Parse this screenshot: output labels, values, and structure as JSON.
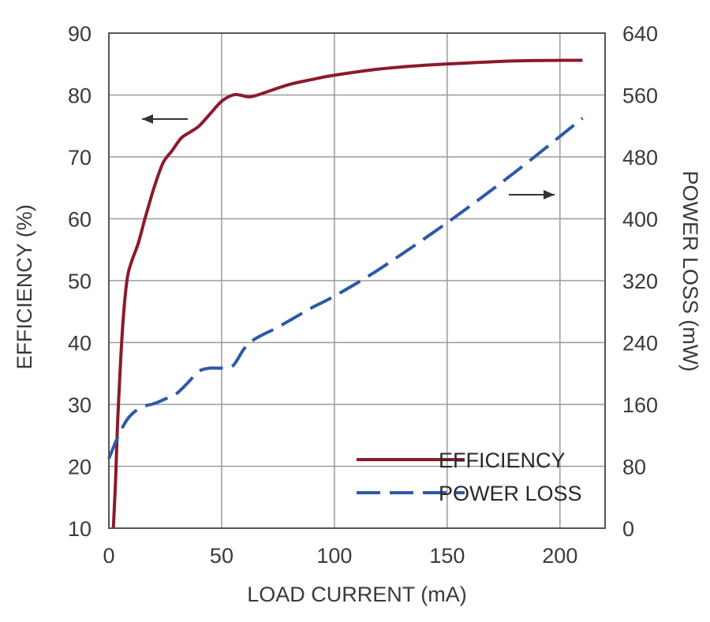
{
  "chart_data": {
    "type": "line",
    "xlabel": "LOAD CURRENT (mA)",
    "ylabel_left": "EFFICIENCY (%)",
    "ylabel_right": "POWER LOSS (mW)",
    "xlim": [
      0,
      220
    ],
    "ylim_left": [
      10,
      90
    ],
    "ylim_right": [
      0,
      640
    ],
    "x_ticks": [
      0,
      50,
      100,
      150,
      200
    ],
    "y_ticks_left": [
      10,
      20,
      30,
      40,
      50,
      60,
      70,
      80,
      90
    ],
    "y_ticks_right": [
      0,
      80,
      160,
      240,
      320,
      400,
      480,
      560,
      640
    ],
    "grid": true,
    "legend_position": "bottom-right",
    "series": [
      {
        "name": "EFFICIENCY",
        "axis": "left",
        "color": "#8b1a2b",
        "line_style": "solid",
        "x": [
          2,
          3,
          4,
          6,
          8,
          10,
          13,
          16,
          20,
          24,
          28,
          32,
          36,
          40,
          45,
          50,
          55,
          58,
          62,
          66,
          70,
          80,
          90,
          100,
          120,
          140,
          160,
          180,
          200,
          210
        ],
        "y": [
          10,
          18,
          28,
          42,
          50,
          53,
          56,
          60,
          65,
          69,
          71,
          73,
          74,
          75,
          77,
          79,
          80,
          80,
          79.7,
          80,
          80.5,
          81.7,
          82.5,
          83.2,
          84.2,
          84.8,
          85.2,
          85.5,
          85.6,
          85.6
        ]
      },
      {
        "name": "POWER LOSS",
        "axis": "right",
        "color": "#2d5aa6",
        "line_style": "dashed",
        "x": [
          0,
          4,
          8,
          12,
          16,
          20,
          25,
          30,
          35,
          40,
          45,
          50,
          55,
          60,
          65,
          75,
          90,
          100,
          120,
          150,
          180,
          210
        ],
        "y": [
          90,
          118,
          140,
          152,
          158,
          161,
          167,
          174,
          188,
          203,
          207,
          207,
          210,
          232,
          245,
          260,
          285,
          300,
          335,
          395,
          460,
          530
        ]
      }
    ],
    "annotations": [
      {
        "type": "arrow",
        "direction": "left",
        "points_to": "left-axis"
      },
      {
        "type": "arrow",
        "direction": "right",
        "points_to": "right-axis"
      }
    ]
  }
}
